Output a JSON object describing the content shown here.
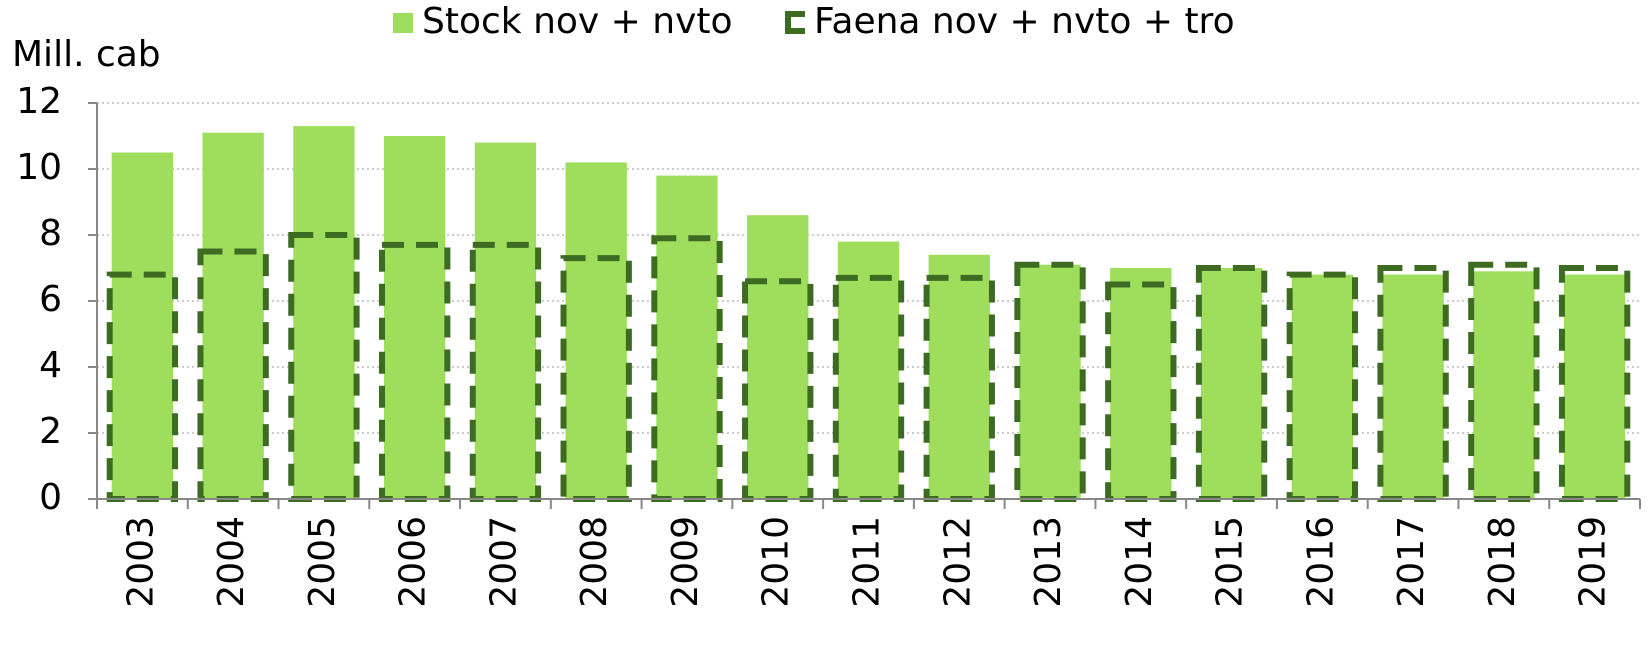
{
  "chart_data": {
    "type": "bar",
    "y_axis_label": "Mill. cab",
    "categories": [
      "2003",
      "2004",
      "2005",
      "2006",
      "2007",
      "2008",
      "2009",
      "2010",
      "2011",
      "2012",
      "2013",
      "2014",
      "2015",
      "2016",
      "2017",
      "2018",
      "2019"
    ],
    "series": [
      {
        "name": "Stock nov + nvto",
        "color": "#9fde5c",
        "style": "fill",
        "values": [
          10.5,
          11.1,
          11.3,
          11.0,
          10.8,
          10.2,
          9.8,
          8.6,
          7.8,
          7.4,
          7.1,
          7.0,
          7.0,
          6.8,
          6.8,
          6.9,
          6.8
        ]
      },
      {
        "name": "Faena nov + nvto + tro",
        "color": "#3d6b22",
        "style": "dashed",
        "values": [
          6.8,
          7.5,
          8.0,
          7.7,
          7.7,
          7.3,
          7.9,
          6.6,
          6.7,
          6.7,
          7.1,
          6.5,
          7.0,
          6.8,
          7.0,
          7.1,
          7.0
        ]
      }
    ],
    "ylim": [
      0,
      12
    ],
    "yticks": [
      0,
      2,
      4,
      6,
      8,
      10,
      12
    ],
    "grid": true
  }
}
